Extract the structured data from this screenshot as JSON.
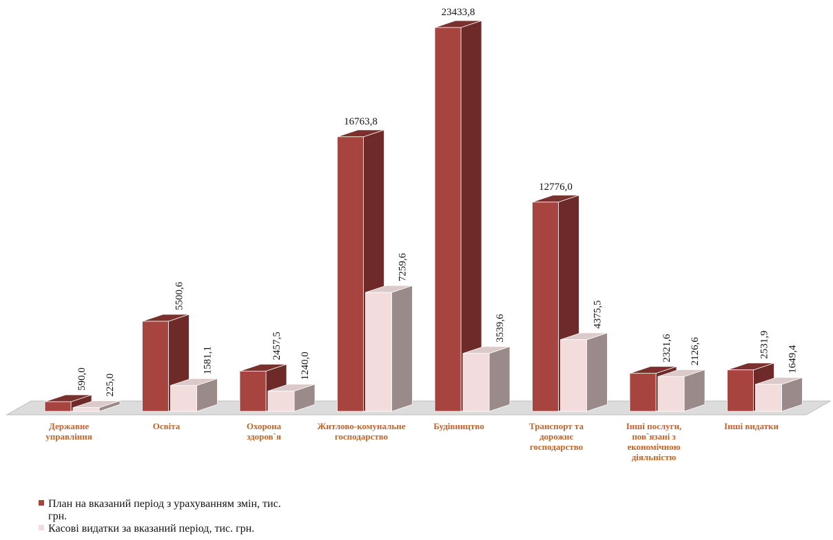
{
  "chart_data": {
    "type": "bar3d",
    "categories": [
      "Державне управління",
      "Освіта",
      "Охорона здоров`я",
      "Житлово-комунальне господарство",
      "Будівництво",
      "Транспорт та дорожнє господарство",
      "Інші послуги, пов`язані з економічною діяльністю",
      "Інші видатки"
    ],
    "series": [
      {
        "name": "План на вказаний період з урахуванням змін, тис. грн.",
        "color": "#a84440",
        "values": [
          590.0,
          5500.6,
          2457.5,
          16763.8,
          23433.8,
          12776.0,
          2321.6,
          2531.9
        ],
        "value_labels": [
          "590,0",
          "5500,6",
          "2457,5",
          "16763,8",
          "23433,8",
          "12776,0",
          "2321,6",
          "2531,9"
        ]
      },
      {
        "name": "Касові видатки за вказаний період, тис. грн.",
        "color": "#f2dcdc",
        "values": [
          225.0,
          1581.1,
          1240.0,
          7259.6,
          3539.6,
          4375.5,
          2126.6,
          1649.4
        ],
        "value_labels": [
          "225,0",
          "1581,1",
          "1240,0",
          "7259,6",
          "3539,6",
          "4375,5",
          "2126,6",
          "1649,4"
        ]
      }
    ]
  }
}
